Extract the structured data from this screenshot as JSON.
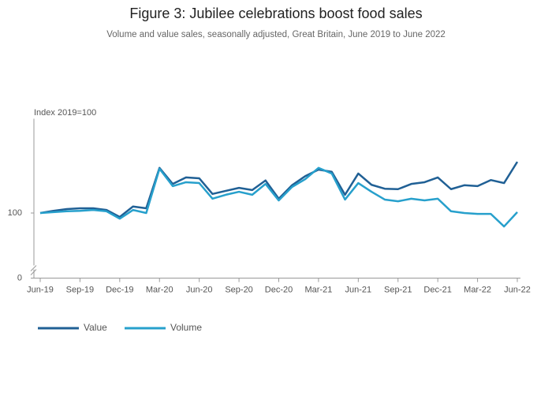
{
  "chart_data": {
    "type": "line",
    "title": "Figure 3: Jubilee celebrations boost food sales",
    "subtitle": "Volume and value sales, seasonally adjusted, Great Britain, June 2019 to June 2022",
    "y_label": "Index 2019=100",
    "categories": [
      "Jun-19",
      null,
      null,
      "Sep-19",
      null,
      null,
      "Dec-19",
      null,
      null,
      "Mar-20",
      null,
      null,
      "Jun-20",
      null,
      null,
      "Sep-20",
      null,
      null,
      "Dec-20",
      null,
      null,
      "Mar-21",
      null,
      null,
      "Jun-21",
      null,
      null,
      "Sep-21",
      null,
      null,
      "Dec-21",
      null,
      null,
      "Mar-22",
      null,
      null,
      "Jun-22"
    ],
    "series": [
      {
        "name": "Value",
        "color": "#206095",
        "values": [
          100,
          100.5,
          100.9,
          101.1,
          101.1,
          100.7,
          99.1,
          101.5,
          101.1,
          110.4,
          106.7,
          108.2,
          108,
          104.4,
          105.1,
          105.8,
          105.3,
          107.5,
          103.3,
          106.4,
          108.5,
          110,
          109.5,
          104.2,
          109.1,
          106.5,
          105.6,
          105.5,
          106.7,
          107.1,
          108.2,
          105.5,
          106.4,
          106.2,
          107.6,
          106.9,
          111.8
        ]
      },
      {
        "name": "Volume",
        "color": "#27a0cc",
        "values": [
          100,
          100.2,
          100.4,
          100.5,
          100.7,
          100.4,
          98.7,
          100.7,
          100,
          110.2,
          106.2,
          107.1,
          106.9,
          103.3,
          104.2,
          104.9,
          104.2,
          106.7,
          102.9,
          106,
          107.8,
          110.4,
          109.1,
          103.1,
          106.9,
          104.9,
          103.1,
          102.7,
          103.3,
          102.9,
          103.3,
          100.4,
          100,
          99.8,
          99.8,
          96.9,
          100.2
        ]
      }
    ],
    "ylim": [
      85,
      121
    ],
    "yticks": [
      0,
      100
    ],
    "axis_break": true,
    "legend": "bottom-left"
  }
}
